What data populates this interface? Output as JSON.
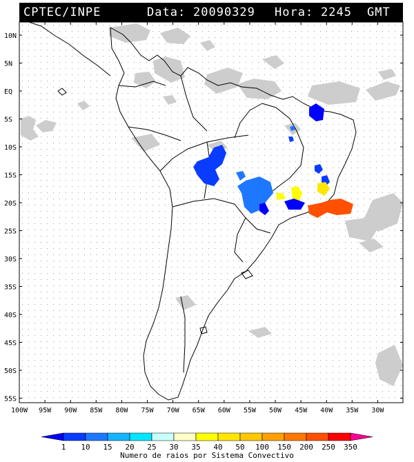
{
  "header": {
    "agency": "CPTEC/INPE",
    "date_label": "Data:",
    "date_value": "20090329",
    "hour_label": "Hora:",
    "hour_value": "2245",
    "tz": "GMT"
  },
  "axes": {
    "lat_ticks": [
      "10N",
      "5N",
      "EQ",
      "5S",
      "10S",
      "15S",
      "20S",
      "25S",
      "30S",
      "35S",
      "40S",
      "45S",
      "50S",
      "55S"
    ],
    "lon_ticks": [
      "100W",
      "95W",
      "90W",
      "85W",
      "80W",
      "75W",
      "70W",
      "65W",
      "60W",
      "55W",
      "50W",
      "45W",
      "40W",
      "35W",
      "30W"
    ]
  },
  "colorbar": {
    "title": "Numero de raios por Sistema Convectivo",
    "labels": [
      "1",
      "10",
      "15",
      "20",
      "25",
      "30",
      "35",
      "40",
      "50",
      "100",
      "150",
      "200",
      "250",
      "350"
    ],
    "colors": [
      "#0000ff",
      "#0a3cff",
      "#1e78ff",
      "#14b4ff",
      "#00e6ff",
      "#c8ffff",
      "#ffffc8",
      "#ffff00",
      "#ffe600",
      "#ffc800",
      "#ffa000",
      "#ff7800",
      "#ff5000",
      "#ff0000",
      "#ff0096"
    ]
  },
  "systems": [
    {
      "name": "northeast-cluster",
      "color": "#0000ff"
    },
    {
      "name": "mato-grosso-cluster",
      "color": "#0a3cff"
    },
    {
      "name": "goias-cluster",
      "color": "#1e78ff"
    },
    {
      "name": "bahia-cluster",
      "color": "#0a3cff"
    },
    {
      "name": "minas-yellow-1",
      "color": "#ffff00"
    },
    {
      "name": "minas-yellow-2",
      "color": "#ffe600"
    },
    {
      "name": "rio-cluster",
      "color": "#ff5000"
    },
    {
      "name": "parana-cluster",
      "color": "#0000ff"
    }
  ]
}
